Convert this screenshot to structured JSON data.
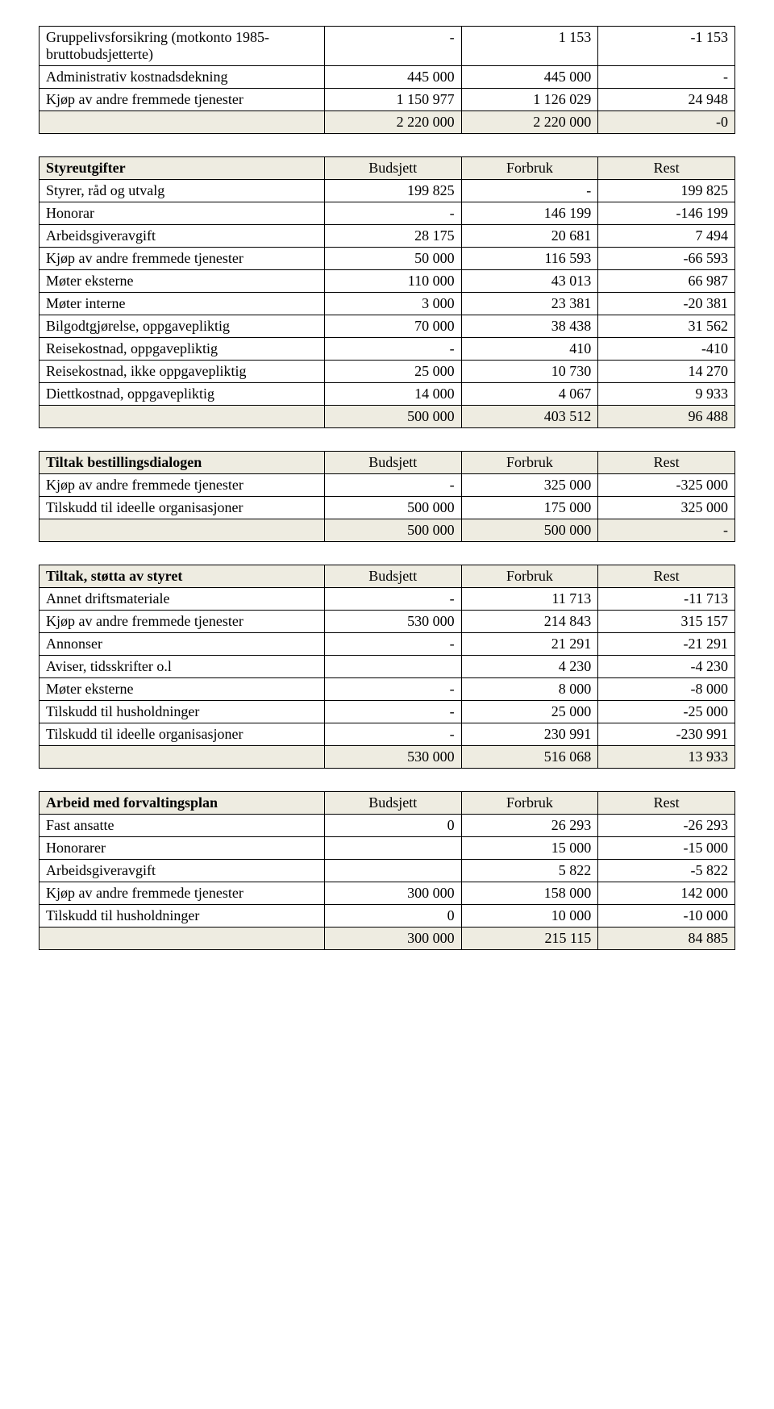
{
  "colors": {
    "background": "#ffffff",
    "text": "#000000",
    "cell_border": "#000000",
    "header_bg": "#eeece1",
    "total_bg": "#eeece1"
  },
  "typography": {
    "font_family": "Times New Roman",
    "body_fontsize_pt": 14
  },
  "layout": {
    "label_col_width_pct": 41,
    "num_col_width_pct": 19.66
  },
  "tables": [
    {
      "id": "t0",
      "header": null,
      "rows": [
        {
          "label": "Gruppelivsforsikring (motkonto 1985- bruttobudsjetterte)",
          "c1": "-",
          "c2": "1 153",
          "c3": "-1 153"
        },
        {
          "label": "Administrativ kostnadsdekning",
          "c1": "445 000",
          "c2": "445 000",
          "c3": "-"
        },
        {
          "label": "Kjøp av andre fremmede tjenester",
          "c1": "1 150 977",
          "c2": "1 126 029",
          "c3": "24 948"
        }
      ],
      "total": {
        "label": "",
        "c1": "2 220 000",
        "c2": "2 220 000",
        "c3": "-0"
      }
    },
    {
      "id": "t1",
      "header": {
        "label": "Styreutgifter",
        "c1": "Budsjett",
        "c2": "Forbruk",
        "c3": "Rest"
      },
      "rows": [
        {
          "label": "Styrer, råd og utvalg",
          "c1": "199 825",
          "c2": "-",
          "c3": "199 825"
        },
        {
          "label": "Honorar",
          "c1": "-",
          "c2": "146 199",
          "c3": "-146 199"
        },
        {
          "label": "Arbeidsgiveravgift",
          "c1": "28 175",
          "c2": "20 681",
          "c3": "7 494"
        },
        {
          "label": "Kjøp av andre fremmede tjenester",
          "c1": "50 000",
          "c2": "116 593",
          "c3": "-66 593"
        },
        {
          "label": "Møter eksterne",
          "c1": "110 000",
          "c2": "43 013",
          "c3": "66 987"
        },
        {
          "label": "Møter interne",
          "c1": "3 000",
          "c2": "23 381",
          "c3": "-20 381"
        },
        {
          "label": "Bilgodtgjørelse, oppgavepliktig",
          "c1": "70 000",
          "c2": "38 438",
          "c3": "31 562"
        },
        {
          "label": "Reisekostnad, oppgavepliktig",
          "c1": "-",
          "c2": "410",
          "c3": "-410"
        },
        {
          "label": "Reisekostnad, ikke oppgavepliktig",
          "c1": "25 000",
          "c2": "10 730",
          "c3": "14 270"
        },
        {
          "label": "Diettkostnad, oppgavepliktig",
          "c1": "14 000",
          "c2": "4 067",
          "c3": "9 933"
        }
      ],
      "total": {
        "label": "",
        "c1": "500 000",
        "c2": "403 512",
        "c3": "96 488"
      }
    },
    {
      "id": "t2",
      "header": {
        "label": "Tiltak bestillingsdialogen",
        "c1": "Budsjett",
        "c2": "Forbruk",
        "c3": "Rest"
      },
      "rows": [
        {
          "label": "Kjøp av andre fremmede tjenester",
          "c1": "-",
          "c2": "325 000",
          "c3": "-325 000"
        },
        {
          "label": "Tilskudd til ideelle organisasjoner",
          "c1": "500 000",
          "c2": "175 000",
          "c3": "325 000"
        }
      ],
      "total": {
        "label": "",
        "c1": "500 000",
        "c2": "500 000",
        "c3": "-"
      }
    },
    {
      "id": "t3",
      "header": {
        "label": "Tiltak, støtta av styret",
        "c1": "Budsjett",
        "c2": "Forbruk",
        "c3": "Rest"
      },
      "rows": [
        {
          "label": "Annet driftsmateriale",
          "c1": "-",
          "c2": "11 713",
          "c3": "-11 713"
        },
        {
          "label": "Kjøp av andre fremmede tjenester",
          "c1": "530 000",
          "c2": "214 843",
          "c3": "315 157"
        },
        {
          "label": "Annonser",
          "c1": "-",
          "c2": "21 291",
          "c3": "-21 291"
        },
        {
          "label": "Aviser, tidsskrifter o.l",
          "c1": "",
          "c2": "4 230",
          "c3": "-4 230"
        },
        {
          "label": "Møter eksterne",
          "c1": "-",
          "c2": "8 000",
          "c3": "-8 000"
        },
        {
          "label": "Tilskudd til husholdninger",
          "c1": "-",
          "c2": "25 000",
          "c3": "-25 000"
        },
        {
          "label": "Tilskudd til ideelle organisasjoner",
          "c1": "-",
          "c2": "230 991",
          "c3": "-230 991"
        }
      ],
      "total": {
        "label": "",
        "c1": "530 000",
        "c2": "516 068",
        "c3": "13 933"
      }
    },
    {
      "id": "t4",
      "header": {
        "label": "Arbeid med forvaltingsplan",
        "c1": "Budsjett",
        "c2": "Forbruk",
        "c3": "Rest"
      },
      "rows": [
        {
          "label": "Fast ansatte",
          "c1": "0",
          "c2": "26 293",
          "c3": "-26 293"
        },
        {
          "label": "Honorarer",
          "c1": "",
          "c2": "15 000",
          "c3": "-15 000"
        },
        {
          "label": "Arbeidsgiveravgift",
          "c1": "",
          "c2": "5 822",
          "c3": "-5 822"
        },
        {
          "label": "Kjøp av andre fremmede tjenester",
          "c1": "300 000",
          "c2": "158 000",
          "c3": "142 000"
        },
        {
          "label": "Tilskudd til husholdninger",
          "c1": "0",
          "c2": "10 000",
          "c3": "-10 000"
        }
      ],
      "total": {
        "label": "",
        "c1": "300 000",
        "c2": "215 115",
        "c3": "84 885"
      }
    }
  ]
}
